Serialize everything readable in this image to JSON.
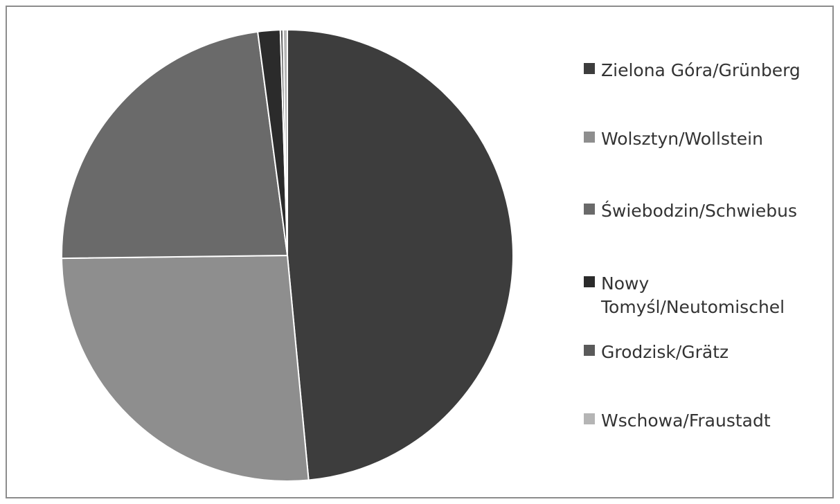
{
  "chart_data": {
    "type": "pie",
    "title": "",
    "legend_position": "right",
    "slices": [
      {
        "label": "Zielona Góra/Grünberg",
        "value": 48.5,
        "color": "#3d3d3d"
      },
      {
        "label": "Wolsztyn/Wollstein",
        "value": 26.3,
        "color": "#8e8e8e"
      },
      {
        "label": "Świebodzin/Schwiebus",
        "value": 23.1,
        "color": "#6a6a6a"
      },
      {
        "label": "Nowy Tomyśl/Neutomischel",
        "value": 1.6,
        "color": "#2b2b2b"
      },
      {
        "label": "Grodzisk/Grätz",
        "value": 0.2,
        "color": "#5a5a5a"
      },
      {
        "label": "Wschowa/Fraustadt",
        "value": 0.3,
        "color": "#b5b5b5"
      }
    ]
  }
}
